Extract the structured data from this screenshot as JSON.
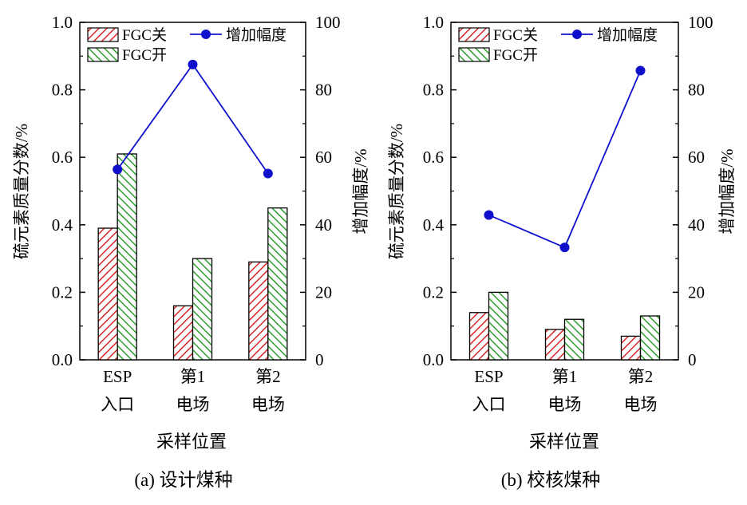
{
  "chart_data": [
    {
      "type": "bar",
      "caption": "(a) 设计煤种",
      "xlabel": "采样位置",
      "ylabel": "硫元素质量分数/%",
      "y2label": "增加幅度/%",
      "categories": [
        [
          "ESP",
          "入口"
        ],
        [
          "第1",
          "电场"
        ],
        [
          "第2",
          "电场"
        ]
      ],
      "ylim": [
        0,
        1.0
      ],
      "yticks": [
        "0.0",
        "0.2",
        "0.4",
        "0.6",
        "0.8",
        "1.0"
      ],
      "y2lim": [
        0,
        100
      ],
      "y2ticks": [
        "0",
        "20",
        "40",
        "60",
        "80",
        "100"
      ],
      "legend_position": "top",
      "series": [
        {
          "name": "FGC关",
          "kind": "bar",
          "axis": "left",
          "color": "#d62728",
          "values": [
            0.39,
            0.16,
            0.29
          ]
        },
        {
          "name": "FGC开",
          "kind": "bar",
          "axis": "left",
          "color": "#2ca02c",
          "values": [
            0.61,
            0.3,
            0.45
          ]
        },
        {
          "name": "增加幅度",
          "kind": "line",
          "axis": "right",
          "color": "#1010cc",
          "values": [
            56.4,
            87.5,
            55.2
          ]
        }
      ]
    },
    {
      "type": "bar",
      "caption": "(b) 校核煤种",
      "xlabel": "采样位置",
      "ylabel": "硫元素质量分数/%",
      "y2label": "增加幅度/%",
      "categories": [
        [
          "ESP",
          "入口"
        ],
        [
          "第1",
          "电场"
        ],
        [
          "第2",
          "电场"
        ]
      ],
      "ylim": [
        0,
        1.0
      ],
      "yticks": [
        "0.0",
        "0.2",
        "0.4",
        "0.6",
        "0.8",
        "1.0"
      ],
      "y2lim": [
        0,
        100
      ],
      "y2ticks": [
        "0",
        "20",
        "40",
        "60",
        "80",
        "100"
      ],
      "legend_position": "top",
      "series": [
        {
          "name": "FGC关",
          "kind": "bar",
          "axis": "left",
          "color": "#d62728",
          "values": [
            0.14,
            0.09,
            0.07
          ]
        },
        {
          "name": "FGC开",
          "kind": "bar",
          "axis": "left",
          "color": "#2ca02c",
          "values": [
            0.2,
            0.12,
            0.13
          ]
        },
        {
          "name": "增加幅度",
          "kind": "line",
          "axis": "right",
          "color": "#1010cc",
          "values": [
            42.9,
            33.3,
            85.7
          ]
        }
      ]
    }
  ]
}
